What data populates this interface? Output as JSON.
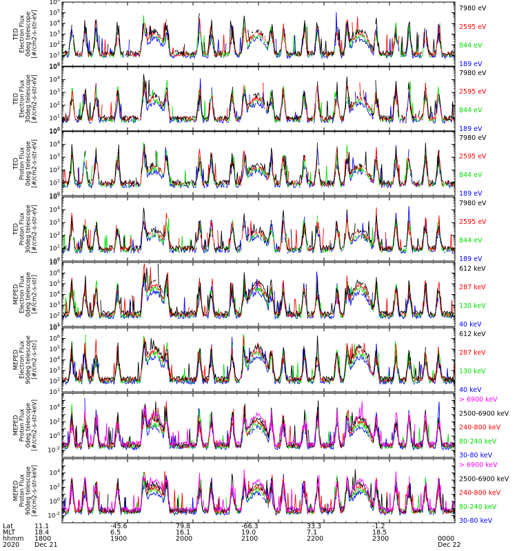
{
  "chart_data": {
    "type": "line",
    "x_range_hours": [
      18.0,
      24.0
    ],
    "panels": [
      {
        "label": [
          "TED",
          "Electron Flux",
          "0deg telescope",
          "[#/cm2-s-str-eV]"
        ],
        "yexp": [
          0,
          6
        ],
        "legend": [
          {
            "text": "7980 eV",
            "color": "#000000"
          },
          {
            "text": "2595 eV",
            "color": "#ff0000"
          },
          {
            "text": "844 eV",
            "color": "#00dd00"
          },
          {
            "text": "189 eV",
            "color": "#0000ff"
          }
        ]
      },
      {
        "label": [
          "TED",
          "Electron Flux",
          "30deg telescope",
          "[#/cm2-s-str-eV]"
        ],
        "yexp": [
          0,
          5
        ],
        "legend": [
          {
            "text": "7980 eV",
            "color": "#000000"
          },
          {
            "text": "2595 eV",
            "color": "#ff0000"
          },
          {
            "text": "844 eV",
            "color": "#00dd00"
          },
          {
            "text": "189 eV",
            "color": "#0000ff"
          }
        ]
      },
      {
        "label": [
          "TED",
          "Proton Flux",
          "0deg telescope",
          "[#/cm2-s-str-eV]"
        ],
        "yexp": [
          0,
          5
        ],
        "legend": [
          {
            "text": "7980 eV",
            "color": "#000000"
          },
          {
            "text": "2595 eV",
            "color": "#ff0000"
          },
          {
            "text": "844 eV",
            "color": "#00dd00"
          },
          {
            "text": "189 eV",
            "color": "#0000ff"
          }
        ]
      },
      {
        "label": [
          "TED",
          "Proton Flux",
          "30deg telescope",
          "[#/cm2-s-str-eV]"
        ],
        "yexp": [
          0,
          5
        ],
        "legend": [
          {
            "text": "7980 eV",
            "color": "#000000"
          },
          {
            "text": "2595 eV",
            "color": "#ff0000"
          },
          {
            "text": "844 eV",
            "color": "#00dd00"
          },
          {
            "text": "189 eV",
            "color": "#0000ff"
          }
        ]
      },
      {
        "label": [
          "MEPED",
          "Electron Flux",
          "0deg telescope",
          "[#/cm2-s-str]"
        ],
        "yexp": [
          1,
          7
        ],
        "legend": [
          {
            "text": "612 keV",
            "color": "#000000"
          },
          {
            "text": "287 keV",
            "color": "#ff0000"
          },
          {
            "text": "130 keV",
            "color": "#00dd00"
          },
          {
            "text": "40 keV",
            "color": "#0000ff"
          }
        ]
      },
      {
        "label": [
          "MEPED",
          "Electron Flux",
          "90deg telescope",
          "[#/cm2-s-str]"
        ],
        "yexp": [
          1,
          7
        ],
        "legend": [
          {
            "text": "612 keV",
            "color": "#000000"
          },
          {
            "text": "287 keV",
            "color": "#ff0000"
          },
          {
            "text": "130 keV",
            "color": "#00dd00"
          },
          {
            "text": "40 keV",
            "color": "#0000ff"
          }
        ]
      },
      {
        "label": [
          "MEPED",
          "Proton Flux",
          "0deg telescope",
          "[#/cm2-s-str-keV]"
        ],
        "yexp": [
          -3,
          6
        ],
        "ylabels": [
          -2,
          0,
          2,
          4
        ],
        "legend": [
          {
            "text": "> 6900 keV",
            "color": "#ff00ff"
          },
          {
            "text": "2500-6900 keV",
            "color": "#000000"
          },
          {
            "text": "240-800 keV",
            "color": "#ff0000"
          },
          {
            "text": "80-240 keV",
            "color": "#00dd00"
          },
          {
            "text": "30-80 keV",
            "color": "#0000ff"
          }
        ]
      },
      {
        "label": [
          "MEPED",
          "Proton Flux",
          "90deg telescope",
          "[#/cm2-s-str-keV]"
        ],
        "yexp": [
          -3,
          6
        ],
        "ylabels": [
          -2,
          0,
          2,
          4
        ],
        "legend": [
          {
            "text": "> 6900 keV",
            "color": "#ff00ff"
          },
          {
            "text": "2500-6900 keV",
            "color": "#000000"
          },
          {
            "text": "240-800 keV",
            "color": "#ff0000"
          },
          {
            "text": "80-240 keV",
            "color": "#00dd00"
          },
          {
            "text": "30-80 keV",
            "color": "#0000ff"
          }
        ]
      }
    ],
    "footer": {
      "rows": [
        {
          "name": "Lat",
          "values": [
            "11.1",
            "-45.6",
            "79.8",
            "-66.3",
            "33.3",
            "-1.2",
            ""
          ]
        },
        {
          "name": "MLT",
          "values": [
            "18.4",
            "6.5",
            "16.1",
            "19.0",
            "7.1",
            "18.5",
            ""
          ]
        },
        {
          "name": "hhmm",
          "values": [
            "1800",
            "1900",
            "2000",
            "2100",
            "2200",
            "2300",
            "0000"
          ]
        },
        {
          "name": "2020",
          "values": [
            "Dec 21",
            "",
            "",
            "",
            "",
            "",
            "Dec 22"
          ]
        }
      ]
    }
  }
}
